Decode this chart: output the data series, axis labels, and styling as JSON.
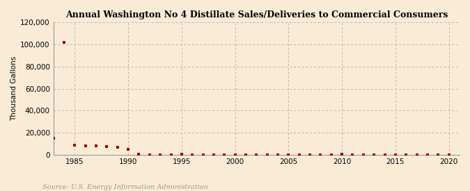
{
  "title": "Annual Washington No 4 Distillate Sales/Deliveries to Commercial Consumers",
  "ylabel": "Thousand Gallons",
  "source": "Source: U.S. Energy Information Administration",
  "background_color": "#faebd7",
  "plot_background_color": "#faebd7",
  "grid_color": "#b0b0b0",
  "point_color": "#990000",
  "xlim": [
    1983,
    2021
  ],
  "ylim": [
    0,
    120000
  ],
  "yticks": [
    0,
    20000,
    40000,
    60000,
    80000,
    100000,
    120000
  ],
  "xticks": [
    1985,
    1990,
    1995,
    2000,
    2005,
    2010,
    2015,
    2020
  ],
  "years": [
    1983,
    1984,
    1985,
    1986,
    1987,
    1988,
    1989,
    1990,
    1991,
    1992,
    1993,
    1994,
    1995,
    1996,
    1997,
    1998,
    1999,
    2000,
    2001,
    2002,
    2003,
    2004,
    2005,
    2006,
    2007,
    2008,
    2009,
    2010,
    2011,
    2012,
    2013,
    2014,
    2015,
    2016,
    2017,
    2018,
    2019,
    2020
  ],
  "values": [
    15000,
    101500,
    9000,
    8500,
    8000,
    7500,
    7000,
    5000,
    800,
    200,
    200,
    200,
    800,
    200,
    200,
    200,
    200,
    200,
    200,
    200,
    200,
    200,
    200,
    200,
    200,
    200,
    200,
    800,
    200,
    200,
    200,
    200,
    200,
    200,
    200,
    200,
    200,
    200
  ]
}
